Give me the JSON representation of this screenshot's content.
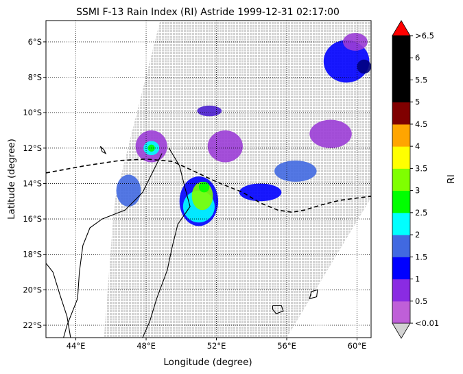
{
  "title": "SSMI F-13 Rain Index (RI) Astride 1999-12-31 02:17:00",
  "xlabel": "Longitude (degree)",
  "ylabel": "Latitude (degree)",
  "colorbar_label": "RI",
  "map": {
    "lon_range": [
      42.3,
      60.8
    ],
    "lat_range": [
      -22.7,
      -4.8
    ],
    "x_ticks": [
      {
        "value": 44,
        "label": "44°E"
      },
      {
        "value": 48,
        "label": "48°E"
      },
      {
        "value": 52,
        "label": "52°E"
      },
      {
        "value": 56,
        "label": "56°E"
      },
      {
        "value": 60,
        "label": "60°E"
      }
    ],
    "y_ticks": [
      {
        "value": -6,
        "label": "6°S"
      },
      {
        "value": -8,
        "label": "8°S"
      },
      {
        "value": -10,
        "label": "10°S"
      },
      {
        "value": -12,
        "label": "12°S"
      },
      {
        "value": -14,
        "label": "14°S"
      },
      {
        "value": -16,
        "label": "16°S"
      },
      {
        "value": -18,
        "label": "18°S"
      },
      {
        "value": -20,
        "label": "20°S"
      },
      {
        "value": -22,
        "label": "22°S"
      }
    ],
    "gridlines": true,
    "gridline_style": "dotted",
    "swath_color": "#d3d3d3",
    "swath_corners": [
      [
        48.8,
        -4.8
      ],
      [
        60.8,
        -4.8
      ],
      [
        60.8,
        -14.8
      ],
      [
        56.0,
        -22.7
      ],
      [
        45.6,
        -22.7
      ],
      [
        46.2,
        -15.0
      ]
    ],
    "coastline_color": "#000000",
    "track_color": "#000000",
    "track": [
      [
        42.3,
        -13.4
      ],
      [
        44.5,
        -13.0
      ],
      [
        46.5,
        -12.7
      ],
      [
        48.0,
        -12.62
      ],
      [
        49.5,
        -12.75
      ],
      [
        50.5,
        -13.2
      ],
      [
        52.0,
        -13.9
      ],
      [
        53.5,
        -14.5
      ],
      [
        54.5,
        -15.1
      ],
      [
        55.5,
        -15.5
      ],
      [
        56.3,
        -15.62
      ],
      [
        57.0,
        -15.5
      ],
      [
        58.0,
        -15.2
      ],
      [
        59.0,
        -14.95
      ],
      [
        60.0,
        -14.82
      ],
      [
        60.8,
        -14.72
      ]
    ],
    "madagascar_outline": [
      [
        49.3,
        -12.0
      ],
      [
        49.9,
        -13.0
      ],
      [
        50.2,
        -14.2
      ],
      [
        50.5,
        -15.3
      ],
      [
        49.8,
        -16.3
      ],
      [
        49.5,
        -17.5
      ],
      [
        49.2,
        -18.9
      ],
      [
        48.6,
        -20.5
      ],
      [
        48.2,
        -21.8
      ],
      [
        47.8,
        -22.7
      ]
    ],
    "madagascar_west_coast": [
      [
        48.9,
        -12.3
      ],
      [
        48.3,
        -13.5
      ],
      [
        47.8,
        -14.5
      ],
      [
        46.8,
        -15.5
      ],
      [
        45.5,
        -16.0
      ],
      [
        44.8,
        -16.5
      ],
      [
        44.4,
        -17.5
      ],
      [
        44.2,
        -19.0
      ],
      [
        44.1,
        -20.5
      ],
      [
        43.5,
        -22.0
      ],
      [
        43.3,
        -22.7
      ]
    ],
    "africa_coast": [
      [
        43.7,
        -22.7
      ],
      [
        43.5,
        -21.5
      ],
      [
        43.1,
        -20.3
      ],
      [
        42.7,
        -19.0
      ],
      [
        42.3,
        -18.5
      ]
    ],
    "islands": [
      {
        "name_hidden": "",
        "points": [
          [
            45.4,
            -11.9
          ],
          [
            45.6,
            -12.1
          ],
          [
            45.7,
            -12.3
          ],
          [
            45.5,
            -12.2
          ],
          [
            45.4,
            -11.9
          ]
        ]
      },
      {
        "name_hidden": "",
        "points": [
          [
            55.2,
            -20.9
          ],
          [
            55.7,
            -20.9
          ],
          [
            55.8,
            -21.2
          ],
          [
            55.4,
            -21.35
          ],
          [
            55.2,
            -21.1
          ],
          [
            55.2,
            -20.9
          ]
        ]
      },
      {
        "name_hidden": "",
        "points": [
          [
            57.4,
            -20.1
          ],
          [
            57.75,
            -20.0
          ],
          [
            57.7,
            -20.4
          ],
          [
            57.3,
            -20.5
          ],
          [
            57.4,
            -20.1
          ]
        ]
      }
    ]
  },
  "rain_patches": [
    {
      "lon": 48.3,
      "lat": -11.9,
      "rx": 0.9,
      "ry": 0.9,
      "color": "#9b3dd6"
    },
    {
      "lon": 48.3,
      "lat": -12.0,
      "rx": 0.45,
      "ry": 0.4,
      "color": "#00ffff"
    },
    {
      "lon": 48.3,
      "lat": -12.0,
      "rx": 0.2,
      "ry": 0.2,
      "color": "#00ff00"
    },
    {
      "lon": 47.0,
      "lat": -14.4,
      "rx": 0.7,
      "ry": 0.9,
      "color": "#4169e1"
    },
    {
      "lon": 51.0,
      "lat": -15.0,
      "rx": 1.1,
      "ry": 1.4,
      "color": "#0000ff"
    },
    {
      "lon": 51.0,
      "lat": -15.3,
      "rx": 0.9,
      "ry": 0.9,
      "color": "#00ffff"
    },
    {
      "lon": 51.2,
      "lat": -14.7,
      "rx": 0.6,
      "ry": 0.8,
      "color": "#80ff00"
    },
    {
      "lon": 51.3,
      "lat": -14.2,
      "rx": 0.3,
      "ry": 0.3,
      "color": "#00ff00"
    },
    {
      "lon": 52.5,
      "lat": -11.9,
      "rx": 1.0,
      "ry": 0.9,
      "color": "#9b3dd6"
    },
    {
      "lon": 51.6,
      "lat": -9.9,
      "rx": 0.7,
      "ry": 0.3,
      "color": "#4b1fd0"
    },
    {
      "lon": 54.5,
      "lat": -14.5,
      "rx": 1.2,
      "ry": 0.5,
      "color": "#0000ff"
    },
    {
      "lon": 56.5,
      "lat": -13.3,
      "rx": 1.2,
      "ry": 0.6,
      "color": "#4169e1"
    },
    {
      "lon": 58.5,
      "lat": -11.2,
      "rx": 1.2,
      "ry": 0.8,
      "color": "#9b3dd6"
    },
    {
      "lon": 59.4,
      "lat": -7.1,
      "rx": 1.3,
      "ry": 1.2,
      "color": "#0000ff"
    },
    {
      "lon": 60.4,
      "lat": -7.4,
      "rx": 0.4,
      "ry": 0.4,
      "color": "#000080"
    },
    {
      "lon": 59.9,
      "lat": -6.0,
      "rx": 0.7,
      "ry": 0.5,
      "color": "#9b3dd6"
    }
  ],
  "colorbar": {
    "colors": [
      "#bf5fd8",
      "#8a2be2",
      "#0000ff",
      "#4169e1",
      "#00ffff",
      "#00ff00",
      "#7fff00",
      "#ffff00",
      "#ffa500",
      "#800000",
      "#000000",
      "#000000",
      "#000000"
    ],
    "under_color": "#d3d3d3",
    "over_color": "#ff0000",
    "tick_labels": [
      "<0.01",
      "0.5",
      "1",
      "1.5",
      "2",
      "2.5",
      "3",
      "3.5",
      "4",
      "4.5",
      "5",
      "5.5",
      "6",
      ">6.5"
    ]
  }
}
